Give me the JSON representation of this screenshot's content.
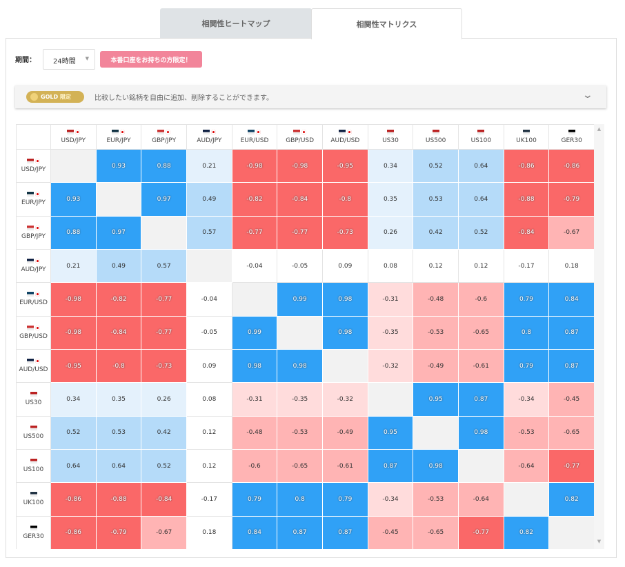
{
  "tabs": [
    "相関性ヒートマップ",
    "相関性マトリクス"
  ],
  "period": {
    "label": "期間：",
    "selected": "24時間",
    "badge": "本番口座をお持ちの方限定！"
  },
  "banner": {
    "badge_gold": "GOLD",
    "badge_limited": "限定",
    "text": "比較したい銘柄を自由に追加、削除することができます。"
  },
  "table": {
    "columns": [
      "USD/JPY",
      "EUR/JPY",
      "GBP/JPY",
      "AUD/JPY",
      "EUR/USD",
      "GBP/USD",
      "AUD/USD",
      "US30",
      "US500",
      "US100",
      "UK100",
      "GER30"
    ],
    "rows": [
      {
        "label": "USD/JPY",
        "values": [
          null,
          0.93,
          0.88,
          0.21,
          -0.98,
          -0.98,
          -0.95,
          0.34,
          0.52,
          0.64,
          -0.86,
          -0.86
        ]
      },
      {
        "label": "EUR/JPY",
        "values": [
          0.93,
          null,
          0.97,
          0.49,
          -0.82,
          -0.84,
          -0.8,
          0.35,
          0.53,
          0.64,
          -0.88,
          -0.79
        ]
      },
      {
        "label": "GBP/JPY",
        "values": [
          0.88,
          0.97,
          null,
          0.57,
          -0.77,
          -0.77,
          -0.73,
          0.26,
          0.42,
          0.52,
          -0.84,
          -0.67
        ]
      },
      {
        "label": "AUD/JPY",
        "values": [
          0.21,
          0.49,
          0.57,
          null,
          -0.04,
          -0.05,
          0.09,
          0.08,
          0.12,
          0.12,
          -0.17,
          0.18
        ]
      },
      {
        "label": "EUR/USD",
        "values": [
          -0.98,
          -0.82,
          -0.77,
          -0.04,
          null,
          0.99,
          0.98,
          -0.31,
          -0.48,
          -0.6,
          0.79,
          0.84
        ]
      },
      {
        "label": "GBP/USD",
        "values": [
          -0.98,
          -0.84,
          -0.77,
          -0.05,
          0.99,
          null,
          0.98,
          -0.35,
          -0.53,
          -0.65,
          0.8,
          0.87
        ]
      },
      {
        "label": "AUD/USD",
        "values": [
          -0.95,
          -0.8,
          -0.73,
          0.09,
          0.98,
          0.98,
          null,
          -0.32,
          -0.49,
          -0.61,
          0.79,
          0.87
        ]
      },
      {
        "label": "US30",
        "values": [
          0.34,
          0.35,
          0.26,
          0.08,
          -0.31,
          -0.35,
          -0.32,
          null,
          0.95,
          0.87,
          -0.34,
          -0.45
        ]
      },
      {
        "label": "US500",
        "values": [
          0.52,
          0.53,
          0.42,
          0.12,
          -0.48,
          -0.53,
          -0.49,
          0.95,
          null,
          0.98,
          -0.53,
          -0.65
        ]
      },
      {
        "label": "US100",
        "values": [
          0.64,
          0.64,
          0.52,
          0.12,
          -0.6,
          -0.65,
          -0.61,
          0.87,
          0.98,
          null,
          -0.64,
          -0.77
        ]
      },
      {
        "label": "UK100",
        "values": [
          -0.86,
          -0.88,
          -0.84,
          -0.17,
          0.79,
          0.8,
          0.79,
          -0.34,
          -0.53,
          -0.64,
          null,
          0.82
        ]
      },
      {
        "label": "GER30",
        "values": [
          -0.86,
          -0.79,
          -0.67,
          0.18,
          0.84,
          0.87,
          0.87,
          -0.45,
          -0.65,
          -0.77,
          0.82,
          null
        ]
      }
    ]
  }
}
